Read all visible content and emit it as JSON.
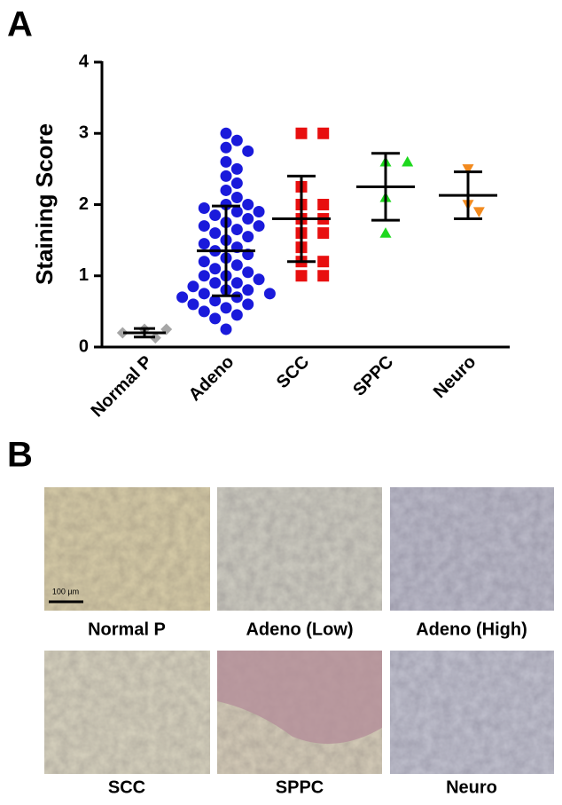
{
  "panel_labels": [
    "A",
    "B"
  ],
  "chart_data": {
    "type": "dotplot",
    "ylabel": "Staining Score",
    "categories": [
      "Normal P",
      "Adeno",
      "SCC",
      "SPPC",
      "Neuro"
    ],
    "ylim": [
      0,
      4
    ],
    "yticks": [
      0,
      1,
      2,
      3,
      4
    ],
    "groups": [
      {
        "color": "#a6a6a6",
        "marker": "diamond",
        "values": [
          0.25,
          0.25,
          0.13,
          0.2
        ],
        "mean": 0.2,
        "sd": 0.06
      },
      {
        "color": "#1a1adb",
        "marker": "circle",
        "values": [
          3.0,
          2.9,
          2.8,
          2.75,
          2.6,
          2.5,
          2.4,
          2.3,
          2.2,
          2.1,
          2.0,
          2.0,
          1.95,
          1.9,
          1.9,
          1.85,
          1.8,
          1.75,
          1.7,
          1.7,
          1.65,
          1.6,
          1.55,
          1.5,
          1.45,
          1.4,
          1.35,
          1.3,
          1.25,
          1.2,
          1.15,
          1.1,
          1.05,
          1.0,
          1.0,
          0.95,
          0.9,
          0.9,
          0.85,
          0.8,
          0.8,
          0.75,
          0.75,
          0.7,
          0.7,
          0.65,
          0.6,
          0.6,
          0.55,
          0.5,
          0.45,
          0.4,
          0.25
        ],
        "mean": 1.35,
        "sd": 0.63
      },
      {
        "color": "#e80f0f",
        "marker": "square",
        "values": [
          3.0,
          3.0,
          2.25,
          2.0,
          2.0,
          1.8,
          1.8,
          1.6,
          1.6,
          1.4,
          1.2,
          1.2,
          1.0,
          1.0
        ],
        "mean": 1.8,
        "sd": 0.6
      },
      {
        "color": "#1ed81e",
        "marker": "triangle",
        "values": [
          2.6,
          2.6,
          2.1,
          1.6
        ],
        "mean": 2.25,
        "sd": 0.47
      },
      {
        "color": "#f28a1e",
        "marker": "triangle-down",
        "values": [
          2.5,
          2.0,
          1.9
        ],
        "mean": 2.13,
        "sd": 0.33
      }
    ]
  },
  "panel_b": {
    "scale_bar": "100 µm",
    "captions": [
      "Normal P",
      "Adeno (Low)",
      "Adeno (High)",
      "SCC",
      "SPPC",
      "Neuro"
    ]
  }
}
